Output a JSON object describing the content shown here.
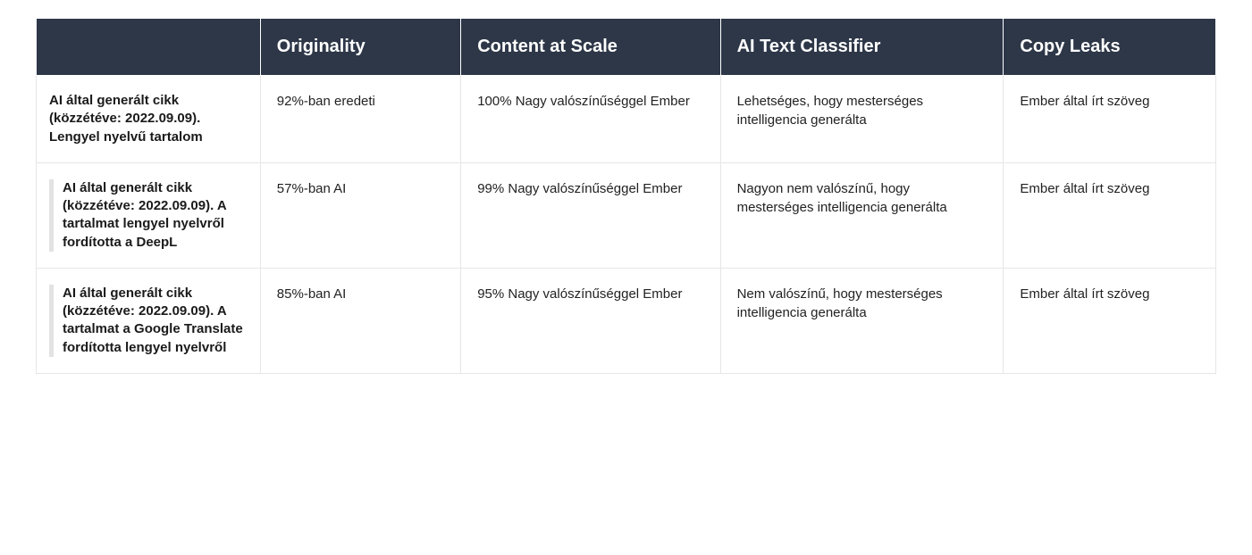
{
  "table": {
    "type": "table",
    "colors": {
      "header_bg": "#2d3748",
      "header_text": "#ffffff",
      "cell_bg": "#ffffff",
      "cell_text": "#1a1a1a",
      "border_color": "#e6e6e6",
      "indent_bar": "#e2e2e2"
    },
    "fonts": {
      "header_size_pt": 15,
      "header_weight": 700,
      "row_header_size_pt": 11,
      "row_header_weight": 700,
      "cell_size_pt": 11,
      "cell_weight": 400
    },
    "column_widths_pct": [
      19,
      17,
      22,
      24,
      18
    ],
    "columns": [
      "",
      "Originality",
      "Content at Scale",
      "AI Text Classifier",
      "Copy Leaks"
    ],
    "rows": [
      {
        "indented": false,
        "label": "AI által generált cikk (közzétéve: 2022.09.09). Lengyel nyelvű tartalom",
        "cells": [
          "92%-ban eredeti",
          "100% Nagy valószínűséggel Ember",
          "Lehetséges, hogy mesterséges intelligencia generálta",
          "Ember által írt szöveg"
        ]
      },
      {
        "indented": true,
        "label": "AI által generált cikk (közzétéve: 2022.09.09). A tartalmat lengyel nyelvről fordította a DeepL",
        "cells": [
          "57%-ban AI",
          "99% Nagy valószínűséggel Ember",
          "Nagyon nem valószínű, hogy mesterséges intelligencia generálta",
          "Ember által írt szöveg"
        ]
      },
      {
        "indented": true,
        "label": "AI által generált cikk (közzétéve: 2022.09.09). A tartalmat a Google Translate fordította lengyel nyelvről",
        "cells": [
          "85%-ban AI",
          "95% Nagy valószínűséggel Ember",
          "Nem valószínű, hogy mesterséges intelligencia generálta",
          "Ember által írt szöveg"
        ]
      }
    ]
  }
}
